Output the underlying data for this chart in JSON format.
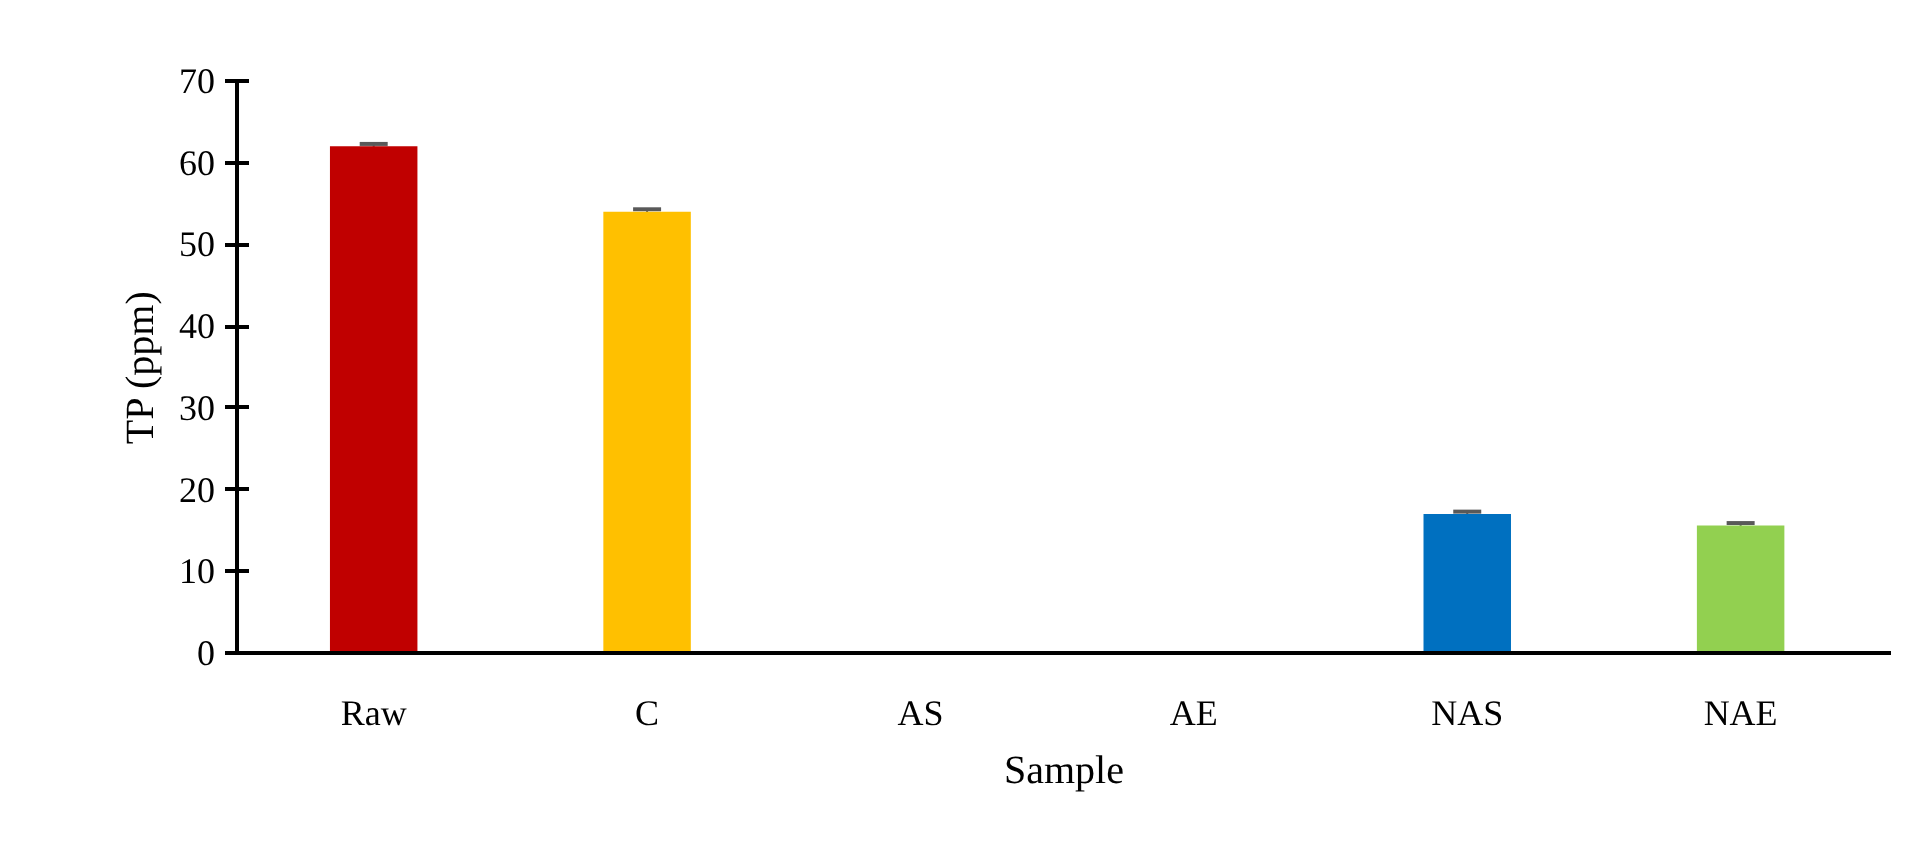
{
  "chart_data": {
    "type": "bar",
    "xlabel": "Sample",
    "ylabel": "TP (ppm)",
    "categories": [
      "Raw",
      "C",
      "AS",
      "AE",
      "NAS",
      "NAE"
    ],
    "values": [
      62,
      54,
      0,
      0,
      17,
      15.6
    ],
    "colors": [
      "#c00000",
      "#ffc000",
      "#a5a5a5",
      "#4472c4",
      "#0070c0",
      "#92d050"
    ],
    "errors": [
      0.3,
      0.3,
      null,
      null,
      0.3,
      0.3
    ],
    "ylim": [
      0,
      70
    ],
    "yticks": [
      0,
      10,
      20,
      30,
      40,
      50,
      60,
      70
    ],
    "grid": false
  }
}
